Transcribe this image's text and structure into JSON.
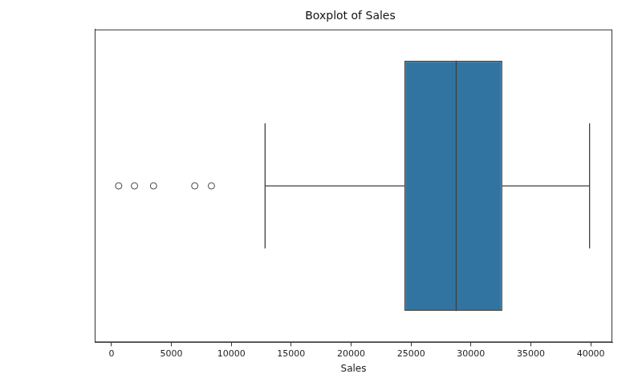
{
  "chart_data": {
    "type": "boxplot",
    "title": "Boxplot of Sales",
    "x_label": "Sales",
    "q1": 24450,
    "median": 28770,
    "q3": 32620,
    "whisker_low": 12820,
    "whisker_high": 39900,
    "outliers": [
      600,
      1920,
      3510,
      6950,
      8340
    ],
    "color": "#3274a1",
    "xlim": [
      -1400,
      41800
    ],
    "xticks": [
      0,
      5000,
      10000,
      15000,
      20000,
      25000,
      30000,
      35000,
      40000
    ],
    "grid": false,
    "tick_labels": "x"
  }
}
